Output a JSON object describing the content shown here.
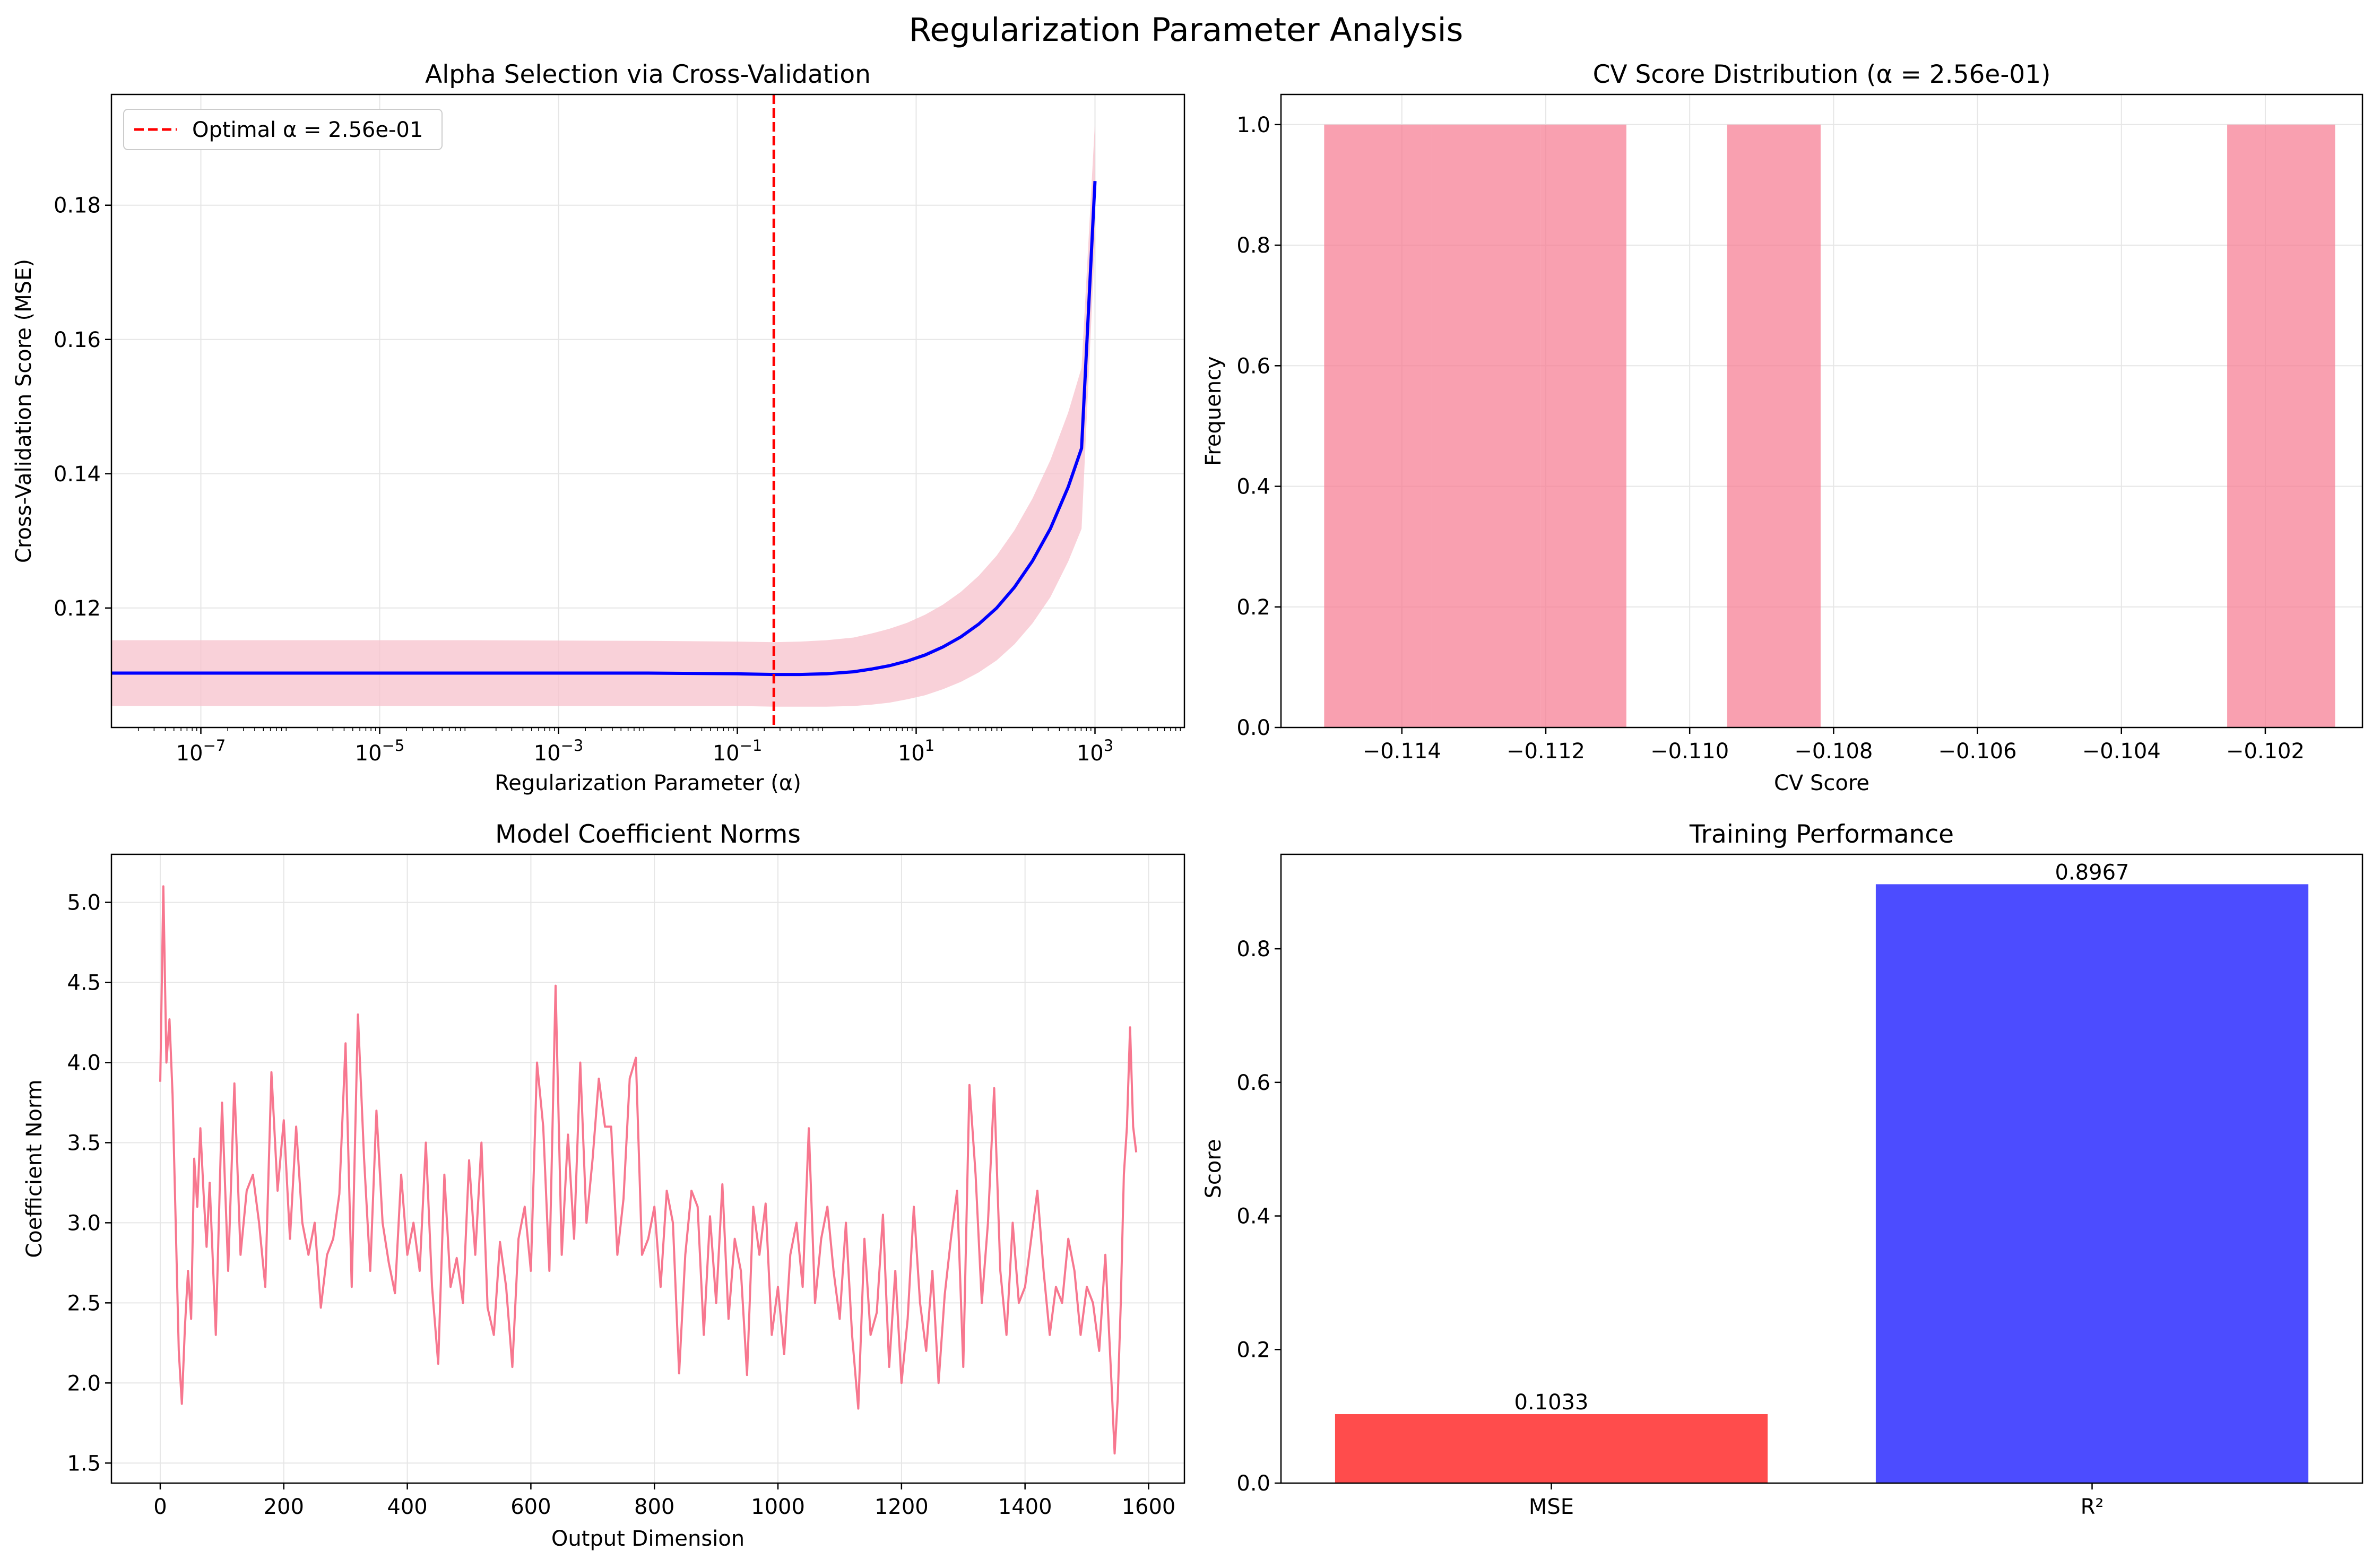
{
  "figure": {
    "suptitle": "Regularization Parameter Analysis"
  },
  "colors": {
    "pink": "#f7778f",
    "pink_band": "#f7c1cc",
    "blue_line": "#0000ff",
    "bar_red": "#ff4c4c",
    "bar_blue": "#4c4cff",
    "optimal_line": "#ff0000",
    "grid": "#e6e6e6"
  },
  "chart_data": [
    {
      "id": "alpha",
      "type": "line",
      "title": "Alpha Selection via Cross-Validation",
      "xlabel": "Regularization Parameter (α)",
      "ylabel": "Cross-Validation Score (MSE)",
      "xscale": "log",
      "xlim": [
        1e-08,
        10000
      ],
      "ylim": [
        0.1022,
        0.1965
      ],
      "grid": true,
      "legend": {
        "position": "top-left",
        "entries": [
          "Optimal α = 2.56e-01"
        ]
      },
      "x_ticks": [
        {
          "exp": -7,
          "base": "10",
          "sup": "−7"
        },
        {
          "exp": -5,
          "base": "10",
          "sup": "−5"
        },
        {
          "exp": -3,
          "base": "10",
          "sup": "−3"
        },
        {
          "exp": -1,
          "base": "10",
          "sup": "−1"
        },
        {
          "exp": 1,
          "base": "10",
          "sup": "1"
        },
        {
          "exp": 3,
          "base": "10",
          "sup": "3"
        }
      ],
      "y_ticks": [
        0.12,
        0.14,
        0.16,
        0.18
      ],
      "y_tick_labels": [
        "0.12",
        "0.14",
        "0.16",
        "0.18"
      ],
      "optimal_alpha": 0.256,
      "series": [
        {
          "type": "line",
          "log10_alpha": [
            -8,
            -6,
            -4,
            -2,
            -1,
            -0.59,
            -0.3,
            0,
            0.3,
            0.5,
            0.7,
            0.9,
            1.1,
            1.3,
            1.5,
            1.7,
            1.9,
            2.1,
            2.3,
            2.5,
            2.7,
            2.85,
            3
          ],
          "values": [
            0.1103,
            0.1103,
            0.1103,
            0.1103,
            0.1102,
            0.1101,
            0.1101,
            0.1102,
            0.1105,
            0.1109,
            0.1114,
            0.1121,
            0.113,
            0.1142,
            0.1157,
            0.1176,
            0.12,
            0.1231,
            0.127,
            0.1318,
            0.138,
            0.1438,
            0.1836
          ]
        },
        {
          "type": "band",
          "log10_alpha": [
            -8,
            -6,
            -4,
            -2,
            -1,
            -0.59,
            -0.3,
            0,
            0.3,
            0.5,
            0.7,
            0.9,
            1.1,
            1.3,
            1.5,
            1.7,
            1.9,
            2.1,
            2.3,
            2.5,
            2.7,
            2.85,
            3
          ],
          "upper": [
            0.1152,
            0.1152,
            0.1152,
            0.1151,
            0.115,
            0.1149,
            0.115,
            0.1152,
            0.1156,
            0.1162,
            0.1169,
            0.1178,
            0.119,
            0.1205,
            0.1224,
            0.1248,
            0.1278,
            0.1316,
            0.1363,
            0.142,
            0.1491,
            0.1558,
            0.1925
          ],
          "lower": [
            0.1054,
            0.1054,
            0.1054,
            0.1054,
            0.1054,
            0.1053,
            0.1053,
            0.1053,
            0.1054,
            0.1056,
            0.1059,
            0.1064,
            0.107,
            0.1079,
            0.109,
            0.1104,
            0.1122,
            0.1146,
            0.1177,
            0.1216,
            0.1269,
            0.1318,
            0.1746
          ]
        }
      ]
    },
    {
      "id": "hist",
      "type": "bar",
      "title": "CV Score Distribution (α = 2.56e-01)",
      "xlabel": "CV Score",
      "ylabel": "Frequency",
      "xlim": [
        -0.11568,
        -0.10065
      ],
      "ylim": [
        0,
        1.05
      ],
      "grid": true,
      "x_ticks": [
        -0.114,
        -0.112,
        -0.11,
        -0.108,
        -0.106,
        -0.104,
        -0.102
      ],
      "x_tick_labels": [
        "−0.114",
        "−0.112",
        "−0.110",
        "−0.108",
        "−0.106",
        "−0.104",
        "−0.102"
      ],
      "y_ticks": [
        0,
        0.2,
        0.4,
        0.6,
        0.8,
        1
      ],
      "y_tick_labels": [
        "0.0",
        "0.2",
        "0.4",
        "0.6",
        "0.8",
        "1.0"
      ],
      "bins": [
        {
          "start": -0.11508,
          "end": -0.11358,
          "value": 1
        },
        {
          "start": -0.11358,
          "end": -0.11208,
          "value": 1
        },
        {
          "start": -0.11208,
          "end": -0.11088,
          "value": 1
        },
        {
          "start": -0.10948,
          "end": -0.10818,
          "value": 1
        },
        {
          "start": -0.10253,
          "end": -0.10103,
          "value": 1
        }
      ]
    },
    {
      "id": "norms",
      "type": "line",
      "title": "Model Coefficient Norms",
      "xlabel": "Output Dimension",
      "ylabel": "Coefficient Norm",
      "xlim": [
        -79,
        1658
      ],
      "ylim": [
        1.375,
        5.3
      ],
      "grid": true,
      "x_ticks": [
        0,
        200,
        400,
        600,
        800,
        1000,
        1200,
        1400,
        1600
      ],
      "x_tick_labels": [
        "0",
        "200",
        "400",
        "600",
        "800",
        "1000",
        "1200",
        "1400",
        "1600"
      ],
      "y_ticks": [
        1.5,
        2,
        2.5,
        3,
        3.5,
        4,
        4.5,
        5
      ],
      "y_tick_labels": [
        "1.5",
        "2.0",
        "2.5",
        "3.0",
        "3.5",
        "4.0",
        "4.5",
        "5.0"
      ],
      "series": [
        {
          "x": [
            0,
            5,
            10,
            15,
            20,
            25,
            30,
            35,
            40,
            45,
            50,
            55,
            60,
            65,
            70,
            75,
            80,
            90,
            100,
            110,
            120,
            130,
            140,
            150,
            160,
            170,
            180,
            190,
            200,
            210,
            220,
            230,
            240,
            250,
            260,
            270,
            280,
            290,
            300,
            310,
            320,
            330,
            340,
            350,
            360,
            370,
            380,
            390,
            400,
            410,
            420,
            430,
            440,
            450,
            460,
            470,
            480,
            490,
            500,
            510,
            520,
            530,
            540,
            550,
            560,
            570,
            580,
            590,
            600,
            610,
            620,
            630,
            640,
            650,
            660,
            670,
            680,
            690,
            700,
            710,
            720,
            730,
            740,
            750,
            760,
            770,
            780,
            790,
            800,
            810,
            820,
            830,
            840,
            850,
            860,
            870,
            880,
            890,
            900,
            910,
            920,
            930,
            940,
            950,
            960,
            970,
            980,
            990,
            1000,
            1010,
            1020,
            1030,
            1040,
            1050,
            1060,
            1070,
            1080,
            1090,
            1100,
            1110,
            1120,
            1130,
            1140,
            1150,
            1160,
            1170,
            1180,
            1190,
            1200,
            1210,
            1220,
            1230,
            1240,
            1250,
            1260,
            1270,
            1280,
            1290,
            1300,
            1310,
            1320,
            1330,
            1340,
            1350,
            1360,
            1370,
            1380,
            1390,
            1400,
            1410,
            1420,
            1430,
            1440,
            1450,
            1460,
            1470,
            1480,
            1490,
            1500,
            1510,
            1520,
            1530,
            1540,
            1545,
            1550,
            1555,
            1560,
            1565,
            1570,
            1575,
            1580
          ],
          "values": [
            3.88,
            5.1,
            4.0,
            4.27,
            3.8,
            3.0,
            2.2,
            1.87,
            2.35,
            2.7,
            2.4,
            3.4,
            3.1,
            3.59,
            3.2,
            2.85,
            3.25,
            2.3,
            3.75,
            2.7,
            3.87,
            2.8,
            3.2,
            3.3,
            3.0,
            2.6,
            3.94,
            3.2,
            3.64,
            2.9,
            3.6,
            3.0,
            2.8,
            3.0,
            2.47,
            2.8,
            2.9,
            3.18,
            4.12,
            2.6,
            4.3,
            3.4,
            2.7,
            3.7,
            3.0,
            2.75,
            2.56,
            3.3,
            2.8,
            3.0,
            2.7,
            3.5,
            2.6,
            2.12,
            3.3,
            2.6,
            2.78,
            2.5,
            3.39,
            2.8,
            3.5,
            2.47,
            2.3,
            2.88,
            2.6,
            2.1,
            2.9,
            3.1,
            2.7,
            4.0,
            3.6,
            2.7,
            4.48,
            2.8,
            3.55,
            2.9,
            4.0,
            3.0,
            3.4,
            3.9,
            3.6,
            3.6,
            2.8,
            3.15,
            3.9,
            4.03,
            2.8,
            2.9,
            3.1,
            2.6,
            3.2,
            3.0,
            2.06,
            2.8,
            3.2,
            3.1,
            2.3,
            3.04,
            2.5,
            3.24,
            2.4,
            2.9,
            2.7,
            2.05,
            3.1,
            2.8,
            3.12,
            2.3,
            2.6,
            2.18,
            2.8,
            3.0,
            2.6,
            3.59,
            2.5,
            2.9,
            3.1,
            2.7,
            2.4,
            3.0,
            2.3,
            1.84,
            2.9,
            2.3,
            2.44,
            3.05,
            2.1,
            2.7,
            2.0,
            2.4,
            3.1,
            2.5,
            2.2,
            2.7,
            2.0,
            2.55,
            2.9,
            3.2,
            2.1,
            3.86,
            3.3,
            2.5,
            3.0,
            3.84,
            2.7,
            2.3,
            3.0,
            2.5,
            2.6,
            2.9,
            3.2,
            2.7,
            2.3,
            2.6,
            2.5,
            2.9,
            2.7,
            2.3,
            2.6,
            2.5,
            2.2,
            2.8,
            2.0,
            1.56,
            1.9,
            2.5,
            3.3,
            3.6,
            4.22,
            3.6,
            3.44
          ]
        }
      ]
    },
    {
      "id": "perf",
      "type": "bar",
      "title": "Training Performance",
      "xlabel": "",
      "ylabel": "Score",
      "ylim": [
        0,
        0.9415
      ],
      "grid": false,
      "categories": [
        "MSE",
        "R²"
      ],
      "values": [
        0.1033,
        0.8967
      ],
      "value_labels": [
        "0.1033",
        "0.8967"
      ],
      "y_ticks": [
        0,
        0.2,
        0.4,
        0.6,
        0.8
      ],
      "y_tick_labels": [
        "0.0",
        "0.2",
        "0.4",
        "0.6",
        "0.8"
      ]
    }
  ]
}
